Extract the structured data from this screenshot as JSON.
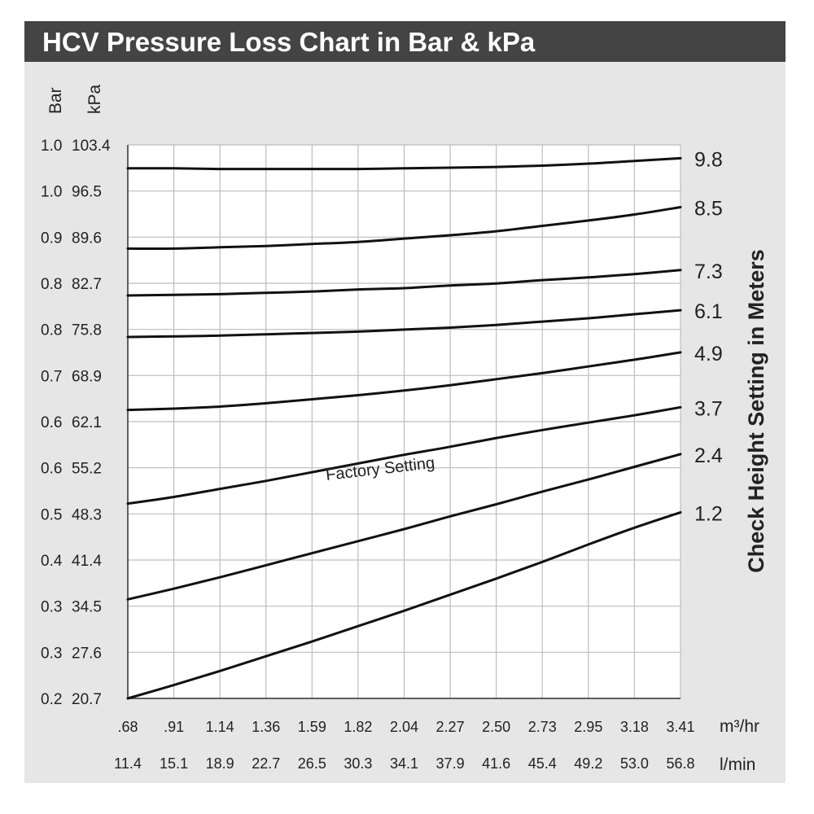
{
  "chart_data": {
    "type": "line",
    "title": "HCV Pressure Loss Chart in Bar & kPa",
    "left_axis_headers": [
      "Bar",
      "kPa"
    ],
    "y_ticks_bar": [
      "1.0",
      "1.0",
      "0.9",
      "0.8",
      "0.8",
      "0.7",
      "0.6",
      "0.6",
      "0.5",
      "0.4",
      "0.3",
      "0.3",
      "0.2"
    ],
    "y_ticks_kpa": [
      103.4,
      96.5,
      89.6,
      82.7,
      75.8,
      68.9,
      62.1,
      55.2,
      48.3,
      41.4,
      34.5,
      27.6,
      20.7
    ],
    "ylim": [
      20.7,
      103.4
    ],
    "x_ticks_m3hr": [
      ".68",
      ".91",
      "1.14",
      "1.36",
      "1.59",
      "1.82",
      "2.04",
      "2.27",
      "2.50",
      "2.73",
      "2.95",
      "3.18",
      "3.41"
    ],
    "x_ticks_lmin": [
      "11.4",
      "15.1",
      "18.9",
      "22.7",
      "26.5",
      "30.3",
      "34.1",
      "37.9",
      "41.6",
      "45.4",
      "49.2",
      "53.0",
      "56.8"
    ],
    "x_unit_m3hr": "m³/hr",
    "x_unit_lmin": "l/min",
    "x_values_m3hr": [
      0.68,
      0.91,
      1.14,
      1.36,
      1.59,
      1.82,
      2.04,
      2.27,
      2.5,
      2.73,
      2.95,
      3.18,
      3.41
    ],
    "right_axis_label": "Check Height Setting in Meters",
    "annotation": "Factory Setting",
    "grid": true,
    "series": [
      {
        "name": "9.8",
        "values": [
          99.9,
          99.9,
          99.8,
          99.8,
          99.8,
          99.8,
          99.9,
          100.0,
          100.1,
          100.3,
          100.6,
          101.0,
          101.4
        ]
      },
      {
        "name": "8.5",
        "values": [
          87.9,
          87.9,
          88.1,
          88.3,
          88.6,
          88.9,
          89.4,
          89.9,
          90.5,
          91.3,
          92.1,
          93.0,
          94.1
        ]
      },
      {
        "name": "7.3",
        "values": [
          80.9,
          81.0,
          81.1,
          81.3,
          81.5,
          81.8,
          82.0,
          82.4,
          82.7,
          83.2,
          83.6,
          84.1,
          84.7
        ]
      },
      {
        "name": "6.1",
        "values": [
          74.7,
          74.8,
          74.9,
          75.1,
          75.3,
          75.5,
          75.8,
          76.1,
          76.5,
          77.0,
          77.5,
          78.1,
          78.7
        ]
      },
      {
        "name": "4.9",
        "values": [
          63.8,
          64.0,
          64.3,
          64.8,
          65.4,
          66.0,
          66.7,
          67.5,
          68.4,
          69.3,
          70.3,
          71.3,
          72.4
        ]
      },
      {
        "name": "3.7",
        "values": [
          49.8,
          50.8,
          52.0,
          53.2,
          54.5,
          55.8,
          57.1,
          58.3,
          59.6,
          60.8,
          61.9,
          63.0,
          64.2
        ]
      },
      {
        "name": "2.4",
        "values": [
          35.5,
          37.1,
          38.8,
          40.6,
          42.4,
          44.2,
          46.0,
          47.9,
          49.7,
          51.6,
          53.4,
          55.3,
          57.2
        ]
      },
      {
        "name": "1.2",
        "values": [
          20.7,
          22.7,
          24.8,
          27.0,
          29.2,
          31.5,
          33.8,
          36.2,
          38.6,
          41.1,
          43.7,
          46.2,
          48.5
        ]
      }
    ]
  }
}
